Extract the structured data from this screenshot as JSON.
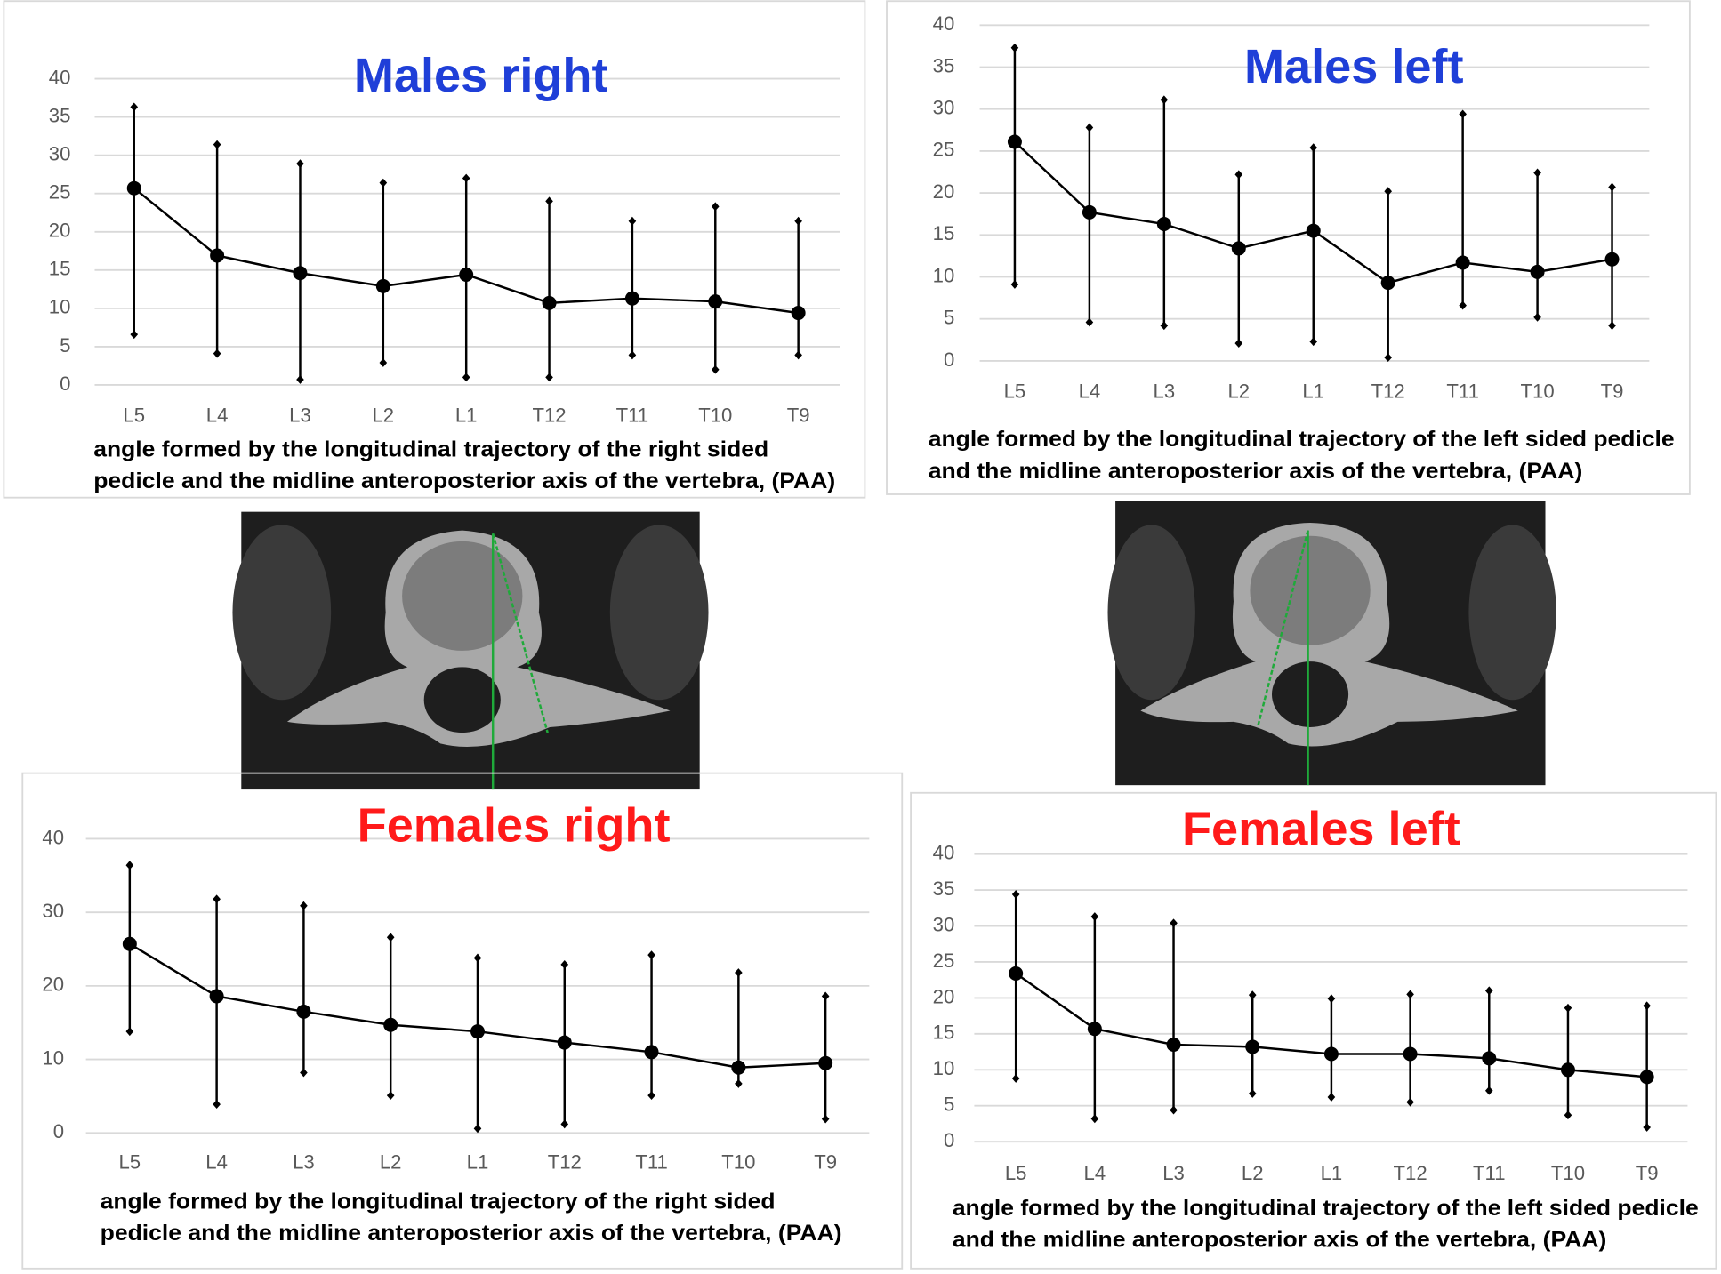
{
  "chart_data": [
    {
      "type": "line",
      "title": "Males right",
      "title_color": "#1f3fd8",
      "categories": [
        "L5",
        "L4",
        "L3",
        "L2",
        "L1",
        "T12",
        "T11",
        "T10",
        "T9"
      ],
      "series": [
        {
          "color": "#000000",
          "values": [
            25.7,
            16.9,
            14.6,
            12.9,
            14.4,
            10.7,
            11.3,
            10.9,
            9.4
          ],
          "lower": [
            6.6,
            4.1,
            0.7,
            2.9,
            1,
            1,
            3.9,
            2,
            3.9
          ],
          "upper": [
            36.3,
            31.4,
            28.9,
            26.4,
            27,
            24,
            21.4,
            23.3,
            21.4
          ]
        }
      ],
      "ylim": [
        0,
        40
      ],
      "yticks": [
        0,
        5,
        10,
        15,
        20,
        25,
        30,
        35,
        40
      ],
      "grid": true,
      "caption_lines": [
        "angle formed by the longitudinal trajectory of the right sided",
        "pedicle and the midline anteroposterior axis of the vertebra, (PAA)"
      ]
    },
    {
      "type": "line",
      "title": "Males left",
      "title_color": "#1f3fd8",
      "categories": [
        "L5",
        "L4",
        "L3",
        "L2",
        "L1",
        "T12",
        "T11",
        "T10",
        "T9"
      ],
      "series": [
        {
          "color": "#000000",
          "values": [
            26.1,
            17.7,
            16.3,
            13.4,
            15.5,
            9.3,
            11.7,
            10.6,
            12.1
          ],
          "lower": [
            9.1,
            4.6,
            4.2,
            2.1,
            2.3,
            0.4,
            6.6,
            5.2,
            4.2
          ],
          "upper": [
            37.3,
            27.8,
            31.1,
            22.2,
            25.4,
            20.2,
            29.4,
            22.4,
            20.7
          ]
        }
      ],
      "ylim": [
        0,
        40
      ],
      "yticks": [
        0,
        5,
        10,
        15,
        20,
        25,
        30,
        35,
        40
      ],
      "grid": true,
      "caption_lines": [
        "angle formed by the longitudinal trajectory of the left sided pedicle",
        "and the midline anteroposterior axis of the vertebra, (PAA)"
      ]
    },
    {
      "type": "line",
      "title": "Females right",
      "title_color": "#ff1a1a",
      "categories": [
        "L5",
        "L4",
        "L3",
        "L2",
        "L1",
        "T12",
        "T11",
        "T10",
        "T9"
      ],
      "series": [
        {
          "color": "#000000",
          "values": [
            25.7,
            18.6,
            16.5,
            14.7,
            13.8,
            12.3,
            11,
            8.9,
            9.5
          ],
          "lower": [
            13.8,
            3.9,
            8.2,
            5.1,
            0.6,
            1.2,
            5.1,
            6.7,
            1.9
          ],
          "upper": [
            36.4,
            31.8,
            30.9,
            26.6,
            23.8,
            22.9,
            24.2,
            21.8,
            18.6
          ]
        }
      ],
      "ylim": [
        0,
        40
      ],
      "yticks": [
        0,
        10,
        20,
        30,
        40
      ],
      "grid": true,
      "caption_lines": [
        "angle formed by the longitudinal trajectory of the right sided",
        "pedicle and the midline anteroposterior axis of the vertebra, (PAA)"
      ]
    },
    {
      "type": "line",
      "title": "Females left",
      "title_color": "#ff1a1a",
      "categories": [
        "L5",
        "L4",
        "L3",
        "L2",
        "L1",
        "T12",
        "T11",
        "T10",
        "T9"
      ],
      "series": [
        {
          "color": "#000000",
          "values": [
            23.4,
            15.7,
            13.5,
            13.2,
            12.2,
            12.2,
            11.6,
            10,
            9
          ],
          "lower": [
            8.8,
            3.2,
            4.4,
            6.7,
            6.2,
            5.5,
            7.1,
            3.7,
            2
          ],
          "upper": [
            34.4,
            31.3,
            30.4,
            20.4,
            19.9,
            20.5,
            21,
            18.6,
            18.9
          ]
        }
      ],
      "ylim": [
        0,
        40
      ],
      "yticks": [
        0,
        5,
        10,
        15,
        20,
        25,
        30,
        35,
        40
      ],
      "grid": true,
      "caption_lines": [
        "angle formed by the longitudinal trajectory of the left sided pedicle",
        "and the midline anteroposterior axis of the vertebra, (PAA)"
      ]
    }
  ]
}
